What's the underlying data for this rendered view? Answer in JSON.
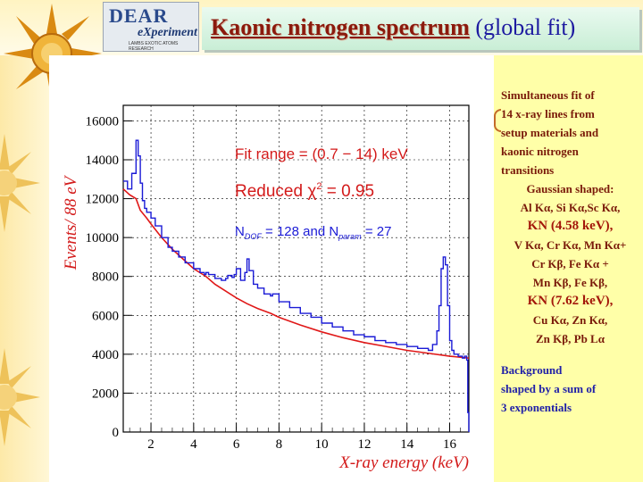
{
  "header": {
    "logo_title": "DEAR",
    "logo_subtitle": "eXperiment",
    "logo_small": "LAMBS EXOTIC ATOMS RESEARCH",
    "title_main": "Kaonic  nitrogen  spectrum",
    "title_sub": "(global fit)"
  },
  "sidebar": {
    "line1": "Simultaneous fit of",
    "line2": "14 x-ray lines from",
    "line3": "setup materials and",
    "line4": "kaonic nitrogen",
    "line5": "transitions",
    "line6": "Gaussian shaped:",
    "line7": "Al Kα, Si Kα,Sc Kα,",
    "kn1": "KN (4.58 keV),",
    "line8": "V Kα, Cr Kα, Mn Kα+",
    "line9": "Cr Kβ, Fe Kα +",
    "line10": "Mn Kβ, Fe Kβ,",
    "kn2": "KN (7.62 keV),",
    "line11": "Cu Kα, Zn Kα,",
    "line12": "Zn Kβ, Pb Lα",
    "bg1": "Background",
    "bg2": "shaped by a sum of",
    "bg3": "3 exponentials"
  },
  "colors": {
    "histogram": "#1a1ad6",
    "fit": "#e01818",
    "axis_label": "#d31a1a",
    "annotation": "#e01818",
    "annotation_ndof": "#1a1ad6"
  },
  "chart_data": {
    "type": "line",
    "xlabel": "X-ray energy (keV)",
    "ylabel": "Events/ 88 eV",
    "xlim": [
      0.7,
      16.9
    ],
    "ylim": [
      0,
      16800
    ],
    "x_ticks": [
      "2",
      "4",
      "6",
      "8",
      "10",
      "12",
      "14",
      "16"
    ],
    "y_ticks": [
      "0",
      "2000",
      "4000",
      "6000",
      "8000",
      "10000",
      "12000",
      "14000",
      "16000"
    ],
    "grid": true,
    "annotations": {
      "fit_range": "Fit range = (0.7 − 14) keV",
      "chi_prefix": "Reduced χ",
      "chi_sup": "2",
      "chi_suffix": " = 0.95",
      "ndof_n": "N",
      "ndof_sub": "DOF",
      "ndof_mid": " =  128 and N",
      "ndof_sub2": "param",
      "ndof_end": " = 27"
    },
    "series": [
      {
        "values_key": "histogram",
        "x": [
          0.7,
          0.9,
          1.1,
          1.3,
          1.4,
          1.5,
          1.6,
          1.7,
          1.8,
          2.0,
          2.2,
          2.5,
          2.8,
          3.0,
          3.3,
          3.6,
          4.0,
          4.3,
          4.5,
          4.58,
          4.7,
          5.0,
          5.3,
          5.5,
          5.6,
          5.8,
          5.9,
          6.0,
          6.2,
          6.4,
          6.5,
          6.6,
          6.8,
          7.0,
          7.3,
          7.6,
          7.7,
          8.0,
          8.5,
          9.0,
          9.5,
          10.0,
          10.5,
          11.0,
          11.5,
          12.0,
          12.5,
          13.0,
          13.5,
          14.0,
          14.5,
          15.0,
          15.2,
          15.4,
          15.5,
          15.6,
          15.7,
          15.8,
          15.9,
          16.0,
          16.1,
          16.2,
          16.4,
          16.6,
          16.7,
          16.8,
          16.85,
          16.9
        ],
        "y": [
          12900,
          12500,
          13300,
          15000,
          14200,
          12800,
          11900,
          11500,
          11300,
          11000,
          10600,
          10000,
          9500,
          9300,
          9000,
          8700,
          8400,
          8200,
          8100,
          8200,
          8100,
          7900,
          7800,
          7900,
          8050,
          7950,
          8100,
          8400,
          7800,
          8200,
          8900,
          8300,
          7600,
          7400,
          7100,
          7000,
          7100,
          6700,
          6400,
          6100,
          5900,
          5600,
          5400,
          5200,
          5000,
          4900,
          4700,
          4600,
          4500,
          4400,
          4300,
          4200,
          4500,
          5200,
          6500,
          8400,
          9000,
          8600,
          6500,
          4700,
          4200,
          4000,
          3900,
          3800,
          3900,
          3700,
          1000,
          0
        ]
      },
      {
        "values_key": "fit",
        "x": [
          0.7,
          1.0,
          1.3,
          1.5,
          1.8,
          2.0,
          2.5,
          3.0,
          3.5,
          4.0,
          4.58,
          5.0,
          5.5,
          6.0,
          6.5,
          7.0,
          7.62,
          8.0,
          9.0,
          10.0,
          11.0,
          12.0,
          13.0,
          14.0,
          15.0,
          16.0,
          16.9
        ],
        "y": [
          12500,
          12200,
          12000,
          11400,
          11000,
          10700,
          10000,
          9400,
          8900,
          8400,
          8000,
          7600,
          7250,
          6900,
          6600,
          6350,
          6100,
          5900,
          5500,
          5150,
          4850,
          4600,
          4400,
          4200,
          4050,
          3900,
          3800
        ]
      }
    ]
  }
}
